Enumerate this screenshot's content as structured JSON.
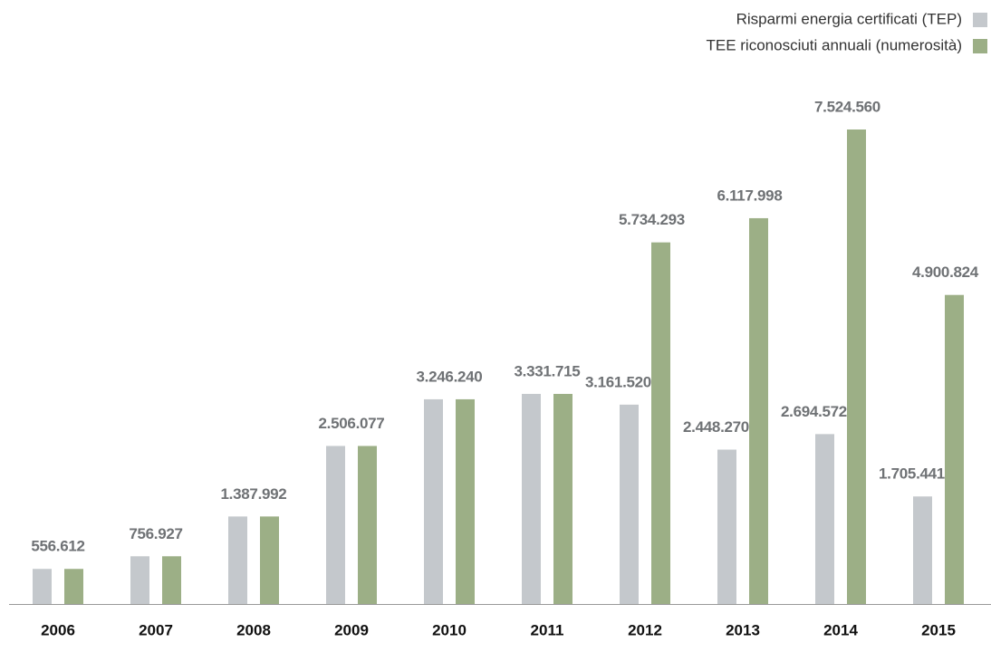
{
  "chart_data": {
    "type": "bar",
    "categories": [
      "2006",
      "2007",
      "2008",
      "2009",
      "2010",
      "2011",
      "2012",
      "2013",
      "2014",
      "2015"
    ],
    "series": [
      {
        "name": "Risparmi energia certificati (TEP)",
        "color": "#c4c8cc",
        "values": [
          556612,
          756927,
          1387992,
          2506077,
          3246240,
          3331715,
          3161520,
          2448270,
          2694572,
          1705441
        ],
        "value_labels": [
          "556.612",
          "756.927",
          "1.387.992",
          "2.506.077",
          "3.246.240",
          "3.331.715",
          "3.161.520",
          "2.448.270",
          "2.694.572",
          "1.705.441"
        ]
      },
      {
        "name": "TEE riconosciuti annuali (numerosità)",
        "color": "#9caf86",
        "values": [
          556612,
          756927,
          1387992,
          2506077,
          3246240,
          3331715,
          5734293,
          6117998,
          7524560,
          4900824
        ],
        "value_labels": [
          null,
          null,
          null,
          null,
          null,
          null,
          "5.734.293",
          "6.117.998",
          "7.524.560",
          "4.900.824"
        ]
      }
    ],
    "legend": "top-right"
  }
}
